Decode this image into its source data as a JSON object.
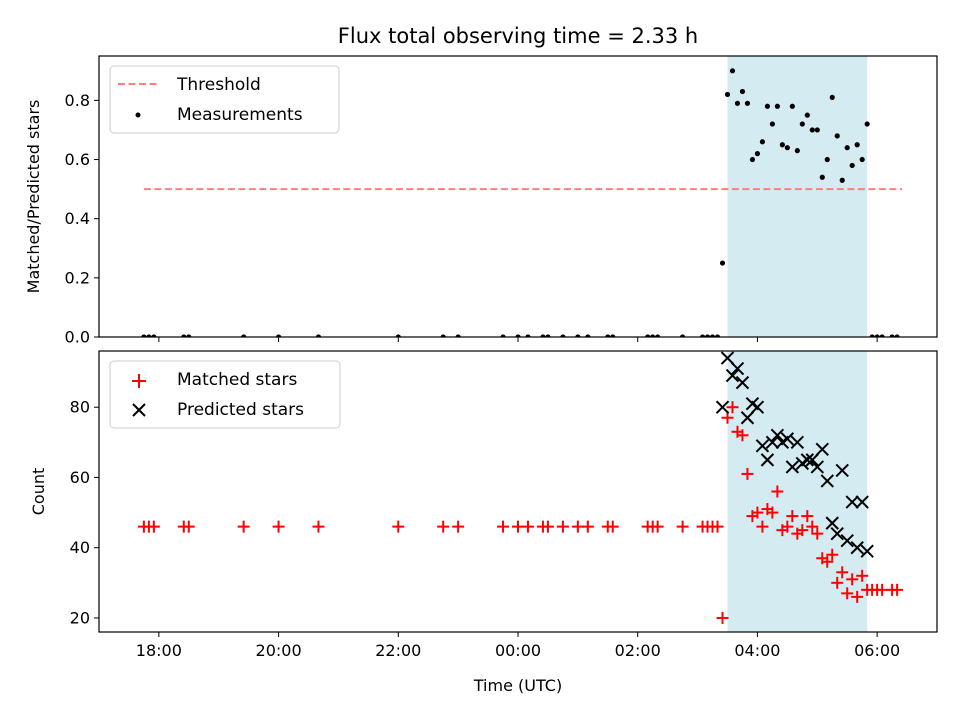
{
  "chart_data": [
    {
      "type": "scatter",
      "title": "Flux total observing time = 2.33 h",
      "xlabel": "",
      "ylabel": "Matched/Predicted stars",
      "xlim": [
        "17:00",
        "07:00"
      ],
      "ylim": [
        0,
        0.95
      ],
      "y_ticks": [
        "0.0",
        "0.2",
        "0.4",
        "0.6",
        "0.8"
      ],
      "shaded_interval": [
        "03:30",
        "05:50"
      ],
      "shade_color": "#d3ebf1",
      "legend": {
        "placement": "upper left",
        "entries": [
          "Threshold",
          "Measurements"
        ]
      },
      "series": [
        {
          "name": "Threshold",
          "style": "dashed-line",
          "color": "#ff7f7f",
          "x": [
            "17:45",
            "06:25"
          ],
          "y": [
            0.5,
            0.5
          ]
        },
        {
          "name": "Measurements",
          "style": "dot",
          "color": "#000000",
          "x": [
            "17:45",
            "17:50",
            "17:55",
            "18:25",
            "18:30",
            "19:25",
            "20:00",
            "20:40",
            "22:00",
            "22:45",
            "23:00",
            "23:45",
            "00:00",
            "00:10",
            "00:25",
            "00:30",
            "00:45",
            "01:00",
            "01:10",
            "01:30",
            "01:35",
            "02:10",
            "02:15",
            "02:20",
            "02:45",
            "03:05",
            "03:10",
            "03:15",
            "03:20",
            "03:25",
            "03:30",
            "03:35",
            "03:40",
            "03:45",
            "03:50",
            "03:55",
            "04:00",
            "04:05",
            "04:10",
            "04:15",
            "04:20",
            "04:25",
            "04:30",
            "04:35",
            "04:40",
            "04:45",
            "04:50",
            "04:55",
            "05:00",
            "05:05",
            "05:10",
            "05:15",
            "05:20",
            "05:25",
            "05:30",
            "05:35",
            "05:40",
            "05:45",
            "05:50",
            "05:55",
            "06:00",
            "06:05",
            "06:15",
            "06:20"
          ],
          "y": [
            0,
            0,
            0,
            0,
            0,
            0,
            0,
            0,
            0,
            0,
            0,
            0,
            0,
            0,
            0,
            0,
            0,
            0,
            0,
            0,
            0,
            0,
            0,
            0,
            0,
            0,
            0,
            0,
            0,
            0.25,
            0.82,
            0.9,
            0.79,
            0.83,
            0.79,
            0.6,
            0.62,
            0.66,
            0.78,
            0.72,
            0.78,
            0.65,
            0.64,
            0.78,
            0.63,
            0.72,
            0.75,
            0.7,
            0.7,
            0.54,
            0.6,
            0.81,
            0.68,
            0.53,
            0.64,
            0.58,
            0.65,
            0.6,
            0.72,
            0,
            0,
            0,
            0,
            0
          ]
        }
      ]
    },
    {
      "type": "scatter",
      "title": "",
      "xlabel": "Time (UTC)",
      "ylabel": "Count",
      "xlim": [
        "17:00",
        "07:00"
      ],
      "ylim": [
        16,
        96
      ],
      "x_ticks": [
        "18:00",
        "20:00",
        "22:00",
        "00:00",
        "02:00",
        "04:00",
        "06:00"
      ],
      "y_ticks": [
        "20",
        "40",
        "60",
        "80"
      ],
      "shaded_interval": [
        "03:30",
        "05:50"
      ],
      "shade_color": "#d3ebf1",
      "legend": {
        "placement": "upper left",
        "entries": [
          "Matched stars",
          "Predicted stars"
        ]
      },
      "series": [
        {
          "name": "Matched stars",
          "style": "plus",
          "color": "#ff0000",
          "x": [
            "17:45",
            "17:50",
            "17:55",
            "18:25",
            "18:30",
            "19:25",
            "20:00",
            "20:40",
            "22:00",
            "22:45",
            "23:00",
            "23:45",
            "00:00",
            "00:10",
            "00:25",
            "00:30",
            "00:45",
            "01:00",
            "01:10",
            "01:30",
            "01:35",
            "02:10",
            "02:15",
            "02:20",
            "02:45",
            "03:05",
            "03:10",
            "03:15",
            "03:20",
            "03:25",
            "03:30",
            "03:35",
            "03:40",
            "03:45",
            "03:50",
            "03:55",
            "04:00",
            "04:05",
            "04:10",
            "04:15",
            "04:20",
            "04:25",
            "04:30",
            "04:35",
            "04:40",
            "04:45",
            "04:50",
            "04:55",
            "05:00",
            "05:05",
            "05:10",
            "05:15",
            "05:20",
            "05:25",
            "05:30",
            "05:35",
            "05:40",
            "05:45",
            "05:50",
            "05:55",
            "06:00",
            "06:05",
            "06:15",
            "06:20"
          ],
          "y": [
            46,
            46,
            46,
            46,
            46,
            46,
            46,
            46,
            46,
            46,
            46,
            46,
            46,
            46,
            46,
            46,
            46,
            46,
            46,
            46,
            46,
            46,
            46,
            46,
            46,
            46,
            46,
            46,
            46,
            20,
            77,
            80,
            73,
            72,
            61,
            49,
            50,
            46,
            51,
            50,
            56,
            45,
            46,
            49,
            44,
            45,
            49,
            46,
            44,
            37,
            36,
            38,
            30,
            33,
            27,
            31,
            26,
            32,
            28,
            28,
            28,
            28,
            28,
            28
          ]
        },
        {
          "name": "Predicted stars",
          "style": "x",
          "color": "#000000",
          "x": [
            "03:25",
            "03:30",
            "03:35",
            "03:40",
            "03:45",
            "03:50",
            "03:55",
            "04:00",
            "04:05",
            "04:10",
            "04:15",
            "04:20",
            "04:25",
            "04:30",
            "04:35",
            "04:40",
            "04:45",
            "04:50",
            "04:55",
            "05:00",
            "05:05",
            "05:10",
            "05:15",
            "05:20",
            "05:25",
            "05:30",
            "05:35",
            "05:40",
            "05:45",
            "05:50"
          ],
          "y": [
            80,
            94,
            89,
            91,
            87,
            77,
            81,
            80,
            69,
            65,
            70,
            72,
            70,
            71,
            63,
            70,
            64,
            65,
            65,
            63,
            68,
            59,
            47,
            44,
            62,
            42,
            53,
            40,
            53,
            39
          ]
        }
      ]
    }
  ]
}
